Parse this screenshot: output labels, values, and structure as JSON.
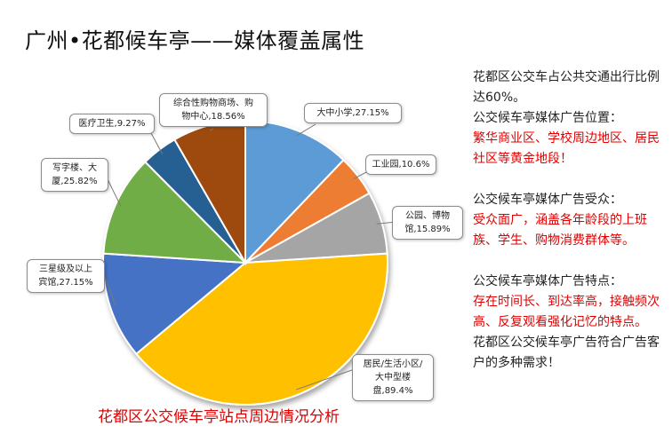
{
  "title": "广州•花都候车亭——媒体覆盖属性",
  "caption": "花都区公交候车亭站点周边情况分析",
  "chart_data": {
    "type": "pie",
    "title": "",
    "slices": [
      {
        "label": "大中小学,27.15%",
        "value": 27.15,
        "color": "#5b9bd5"
      },
      {
        "label": "工业园,10.6%",
        "value": 10.6,
        "color": "#ed7d31"
      },
      {
        "label": "公园、博物馆,15.89%",
        "value": 15.89,
        "color": "#a5a5a5"
      },
      {
        "label": "居民/生活小区/大中型楼盘,89.4%",
        "value": 89.4,
        "color": "#ffc000"
      },
      {
        "label": "三星级及以上宾馆,27.15%",
        "value": 27.15,
        "color": "#4472c4"
      },
      {
        "label": "写字楼、大厦,25.82%",
        "value": 25.82,
        "color": "#70ad47"
      },
      {
        "label": "医疗卫生,9.27%",
        "value": 9.27,
        "color": "#255e91"
      },
      {
        "label": "综合性购物商场、购物中心,18.56%",
        "value": 18.56,
        "color": "#9e480e"
      }
    ]
  },
  "labels": {
    "school": [
      "大中小学,27.15%"
    ],
    "industrial": [
      "工业园,10.6%"
    ],
    "park": [
      "公园、博物",
      "馆,15.89%"
    ],
    "residential": [
      "居民/生活小区/",
      "大中型楼",
      "盘,89.4%"
    ],
    "hotel": [
      "三星级及以上",
      "宾馆,27.15%"
    ],
    "office": [
      "写字楼、大",
      "厦,25.82%"
    ],
    "medical": [
      "医疗卫生,9.27%"
    ],
    "mall": [
      "综合性购物商场、购",
      "物中心,18.56%"
    ]
  },
  "panel": {
    "p1": "花都区公交车占公共交通出行比例达60%。",
    "p2": "公交候车亭媒体广告位置：",
    "p3": "繁华商业区、学校周边地区、居民社区等黄金地段！",
    "p4": "公交候车亭媒体广告受众：",
    "p5": "受众面广，涵盖各年龄段的上班族、学生、购物消费群体等。",
    "p6": "公交候车亭媒体广告特点：",
    "p7": "存在时间长、到达率高，接触频次高、反复观看强化记忆的特点。",
    "p8": "花都区公交候车亭广告符合广告客户的多种需求！"
  }
}
